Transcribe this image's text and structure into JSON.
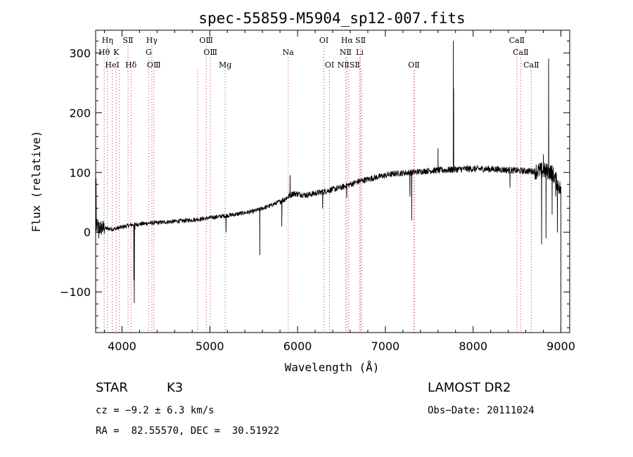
{
  "chart_data": {
    "type": "line",
    "title": "spec-55859-M5904_sp12-007.fits",
    "xlabel": "Wavelength (Å)",
    "ylabel": "Flux (relative)",
    "xlim": [
      3700,
      9100
    ],
    "ylim": [
      -168,
      338
    ],
    "xticks": [
      4000,
      5000,
      6000,
      7000,
      8000,
      9000
    ],
    "yticks": [
      -100,
      0,
      100,
      200,
      300
    ],
    "continuum": [
      [
        3700,
        8
      ],
      [
        3900,
        5
      ],
      [
        4100,
        12
      ],
      [
        4300,
        15
      ],
      [
        4500,
        17
      ],
      [
        4700,
        19
      ],
      [
        4900,
        22
      ],
      [
        5100,
        26
      ],
      [
        5300,
        30
      ],
      [
        5500,
        35
      ],
      [
        5700,
        45
      ],
      [
        5850,
        55
      ],
      [
        5950,
        65
      ],
      [
        6100,
        62
      ],
      [
        6300,
        68
      ],
      [
        6500,
        75
      ],
      [
        6700,
        85
      ],
      [
        6900,
        92
      ],
      [
        7100,
        98
      ],
      [
        7300,
        100
      ],
      [
        7500,
        103
      ],
      [
        7700,
        104
      ],
      [
        7900,
        106
      ],
      [
        8100,
        106
      ],
      [
        8300,
        105
      ],
      [
        8500,
        103
      ],
      [
        8700,
        102
      ],
      [
        8800,
        103
      ],
      [
        8900,
        100
      ],
      [
        9000,
        70
      ]
    ],
    "features": [
      {
        "x": 3705,
        "y": 90
      },
      {
        "x": 3735,
        "y": -10
      },
      {
        "x": 4135,
        "y": -80
      },
      {
        "x": 4140,
        "y": -118
      },
      {
        "x": 4148,
        "y": 5
      },
      {
        "x": 5185,
        "y": 0
      },
      {
        "x": 5570,
        "y": -38
      },
      {
        "x": 5820,
        "y": 10
      },
      {
        "x": 5915,
        "y": 95
      },
      {
        "x": 6285,
        "y": 40
      },
      {
        "x": 6560,
        "y": 58
      },
      {
        "x": 7280,
        "y": 60
      },
      {
        "x": 7300,
        "y": 20
      },
      {
        "x": 7600,
        "y": 140
      },
      {
        "x": 7775,
        "y": 320
      },
      {
        "x": 7778,
        "y": 240
      },
      {
        "x": 8420,
        "y": 75
      },
      {
        "x": 8780,
        "y": -20
      },
      {
        "x": 8800,
        "y": 130
      },
      {
        "x": 8830,
        "y": -10
      },
      {
        "x": 8860,
        "y": 290
      },
      {
        "x": 8900,
        "y": 30
      },
      {
        "x": 8940,
        "y": 60
      },
      {
        "x": 8960,
        "y": 0
      },
      {
        "x": 9000,
        "y": -165
      }
    ],
    "spectral_lines": [
      {
        "label": "Hη",
        "x": 3835,
        "row": 0
      },
      {
        "label": "SⅡ",
        "x": 4069,
        "row": 0
      },
      {
        "label": "Hγ",
        "x": 4340,
        "row": 0
      },
      {
        "label": "OⅢ",
        "x": 4959,
        "row": 0
      },
      {
        "label": "OⅠ",
        "x": 6300,
        "row": 0
      },
      {
        "label": "Hα",
        "x": 6563,
        "row": 0
      },
      {
        "label": "SⅡ",
        "x": 6717,
        "row": 0
      },
      {
        "label": "CaⅡ",
        "x": 8498,
        "row": 0
      },
      {
        "label": "Hθ",
        "x": 3797,
        "row": 1
      },
      {
        "label": "K",
        "x": 3934,
        "row": 1
      },
      {
        "label": "G",
        "x": 4304,
        "row": 1
      },
      {
        "label": "OⅢ",
        "x": 5007,
        "row": 1
      },
      {
        "label": "Na",
        "x": 5893,
        "row": 1
      },
      {
        "label": "NⅡ",
        "x": 6548,
        "row": 1
      },
      {
        "label": "Li",
        "x": 6708,
        "row": 1
      },
      {
        "label": "CaⅡ",
        "x": 8542,
        "row": 1
      },
      {
        "label": "HeⅠ",
        "x": 3889,
        "row": 2
      },
      {
        "label": "Hδ",
        "x": 4102,
        "row": 2
      },
      {
        "label": "OⅢ",
        "x": 4363,
        "row": 2
      },
      {
        "label": "Mg",
        "x": 5175,
        "row": 2
      },
      {
        "label": "OⅠ",
        "x": 6364,
        "row": 2
      },
      {
        "label": "NⅡSⅡ",
        "x": 6583,
        "row": 2
      },
      {
        "label": "OⅡ",
        "x": 7325,
        "row": 2
      },
      {
        "label": "CaⅡ",
        "x": 8662,
        "row": 2
      }
    ],
    "extra_marker_lines": [
      3970,
      4861,
      6731,
      7330
    ]
  },
  "info": {
    "object_type": "STAR",
    "subclass": "K3",
    "survey": "LAMOST DR2",
    "redshift": "cz = −9.2 ± 6.3 km/s",
    "obs_date": "Obs−Date: 20111024",
    "coords": "RA =  82.55570, DEC =  30.51922"
  }
}
